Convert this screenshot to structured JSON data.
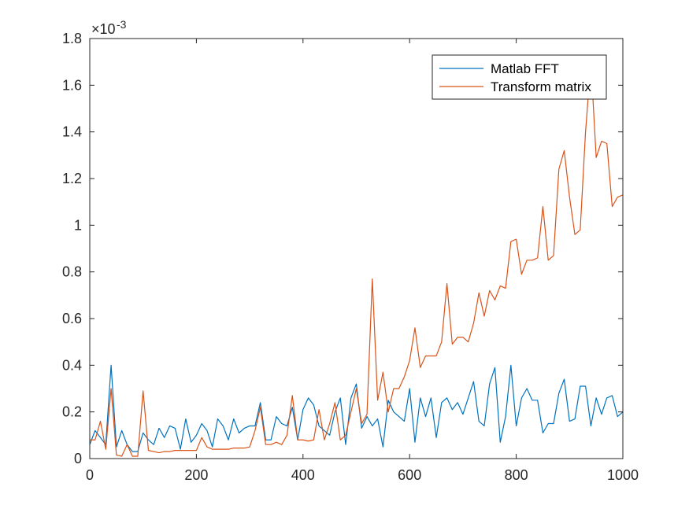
{
  "chart_data": {
    "type": "line",
    "title": "",
    "xlabel": "",
    "ylabel": "",
    "xlim": [
      0,
      1000
    ],
    "ylim": [
      0,
      1.8
    ],
    "y_multiplier_label": {
      "base": "×10",
      "exponent": "-3"
    },
    "xticks": [
      0,
      200,
      400,
      600,
      800,
      1000
    ],
    "xtick_labels": [
      "0",
      "200",
      "400",
      "600",
      "800",
      "1000"
    ],
    "yticks": [
      0,
      0.2,
      0.4,
      0.6,
      0.8,
      1,
      1.2,
      1.4,
      1.6,
      1.8
    ],
    "ytick_labels": [
      "0",
      "0.2",
      "0.4",
      "0.6",
      "0.8",
      "1",
      "1.2",
      "1.4",
      "1.6",
      "1.8"
    ],
    "grid": false,
    "legend_position": "top-right",
    "series": [
      {
        "name": "Matlab FFT",
        "color": "#0072BD",
        "x": [
          0,
          10,
          20,
          30,
          40,
          50,
          60,
          70,
          80,
          90,
          100,
          110,
          120,
          130,
          140,
          150,
          160,
          170,
          180,
          190,
          200,
          210,
          220,
          230,
          240,
          250,
          260,
          270,
          280,
          290,
          300,
          310,
          320,
          330,
          340,
          350,
          360,
          370,
          380,
          390,
          400,
          410,
          420,
          430,
          440,
          450,
          460,
          470,
          480,
          490,
          500,
          510,
          520,
          530,
          540,
          550,
          560,
          570,
          580,
          590,
          600,
          610,
          620,
          630,
          640,
          650,
          660,
          670,
          680,
          690,
          700,
          710,
          720,
          730,
          740,
          750,
          760,
          770,
          780,
          790,
          800,
          810,
          820,
          830,
          840,
          850,
          860,
          870,
          880,
          890,
          900,
          910,
          920,
          930,
          940,
          950,
          960,
          970,
          980,
          990,
          1000
        ],
        "values": [
          0.06,
          0.12,
          0.09,
          0.06,
          0.4,
          0.05,
          0.12,
          0.06,
          0.03,
          0.03,
          0.11,
          0.08,
          0.06,
          0.13,
          0.09,
          0.14,
          0.13,
          0.04,
          0.17,
          0.07,
          0.1,
          0.15,
          0.12,
          0.05,
          0.17,
          0.14,
          0.08,
          0.17,
          0.11,
          0.13,
          0.14,
          0.14,
          0.24,
          0.08,
          0.08,
          0.18,
          0.15,
          0.14,
          0.22,
          0.08,
          0.21,
          0.26,
          0.23,
          0.14,
          0.12,
          0.1,
          0.2,
          0.26,
          0.06,
          0.26,
          0.32,
          0.13,
          0.18,
          0.14,
          0.17,
          0.05,
          0.25,
          0.2,
          0.18,
          0.16,
          0.3,
          0.07,
          0.26,
          0.18,
          0.26,
          0.09,
          0.24,
          0.26,
          0.21,
          0.24,
          0.19,
          0.26,
          0.33,
          0.16,
          0.14,
          0.32,
          0.39,
          0.07,
          0.18,
          0.4,
          0.14,
          0.26,
          0.3,
          0.25,
          0.25,
          0.11,
          0.15,
          0.15,
          0.28,
          0.34,
          0.16,
          0.17,
          0.31,
          0.31,
          0.14,
          0.26,
          0.19,
          0.26,
          0.27,
          0.18,
          0.2
        ]
      },
      {
        "name": "Transform matrix",
        "color": "#D95319",
        "x": [
          0,
          10,
          20,
          30,
          40,
          50,
          60,
          70,
          80,
          90,
          100,
          110,
          120,
          130,
          140,
          150,
          160,
          170,
          180,
          190,
          200,
          210,
          220,
          230,
          240,
          250,
          260,
          270,
          280,
          290,
          300,
          310,
          320,
          330,
          340,
          350,
          360,
          370,
          380,
          390,
          400,
          410,
          420,
          430,
          440,
          450,
          460,
          470,
          480,
          490,
          500,
          510,
          520,
          530,
          540,
          550,
          560,
          570,
          580,
          590,
          600,
          610,
          620,
          630,
          640,
          650,
          660,
          670,
          680,
          690,
          700,
          710,
          720,
          730,
          740,
          750,
          760,
          770,
          780,
          790,
          800,
          810,
          820,
          830,
          840,
          850,
          860,
          870,
          880,
          890,
          900,
          910,
          920,
          930,
          940,
          950,
          960,
          970,
          980,
          990,
          1000
        ],
        "values": [
          0.08,
          0.08,
          0.16,
          0.04,
          0.3,
          0.015,
          0.01,
          0.06,
          0.01,
          0.01,
          0.29,
          0.035,
          0.03,
          0.025,
          0.03,
          0.03,
          0.035,
          0.035,
          0.035,
          0.035,
          0.035,
          0.09,
          0.05,
          0.04,
          0.04,
          0.04,
          0.04,
          0.045,
          0.045,
          0.045,
          0.05,
          0.12,
          0.22,
          0.06,
          0.06,
          0.07,
          0.06,
          0.1,
          0.27,
          0.08,
          0.08,
          0.075,
          0.08,
          0.21,
          0.08,
          0.15,
          0.24,
          0.08,
          0.1,
          0.2,
          0.3,
          0.15,
          0.19,
          0.77,
          0.25,
          0.37,
          0.2,
          0.3,
          0.3,
          0.35,
          0.42,
          0.56,
          0.39,
          0.44,
          0.44,
          0.44,
          0.5,
          0.75,
          0.49,
          0.52,
          0.52,
          0.5,
          0.58,
          0.71,
          0.61,
          0.72,
          0.68,
          0.74,
          0.73,
          0.93,
          0.94,
          0.79,
          0.85,
          0.85,
          0.86,
          1.08,
          0.85,
          0.87,
          1.24,
          1.32,
          1.12,
          0.96,
          0.98,
          1.4,
          1.7,
          1.29,
          1.36,
          1.35,
          1.08,
          1.12,
          1.13
        ]
      }
    ]
  }
}
